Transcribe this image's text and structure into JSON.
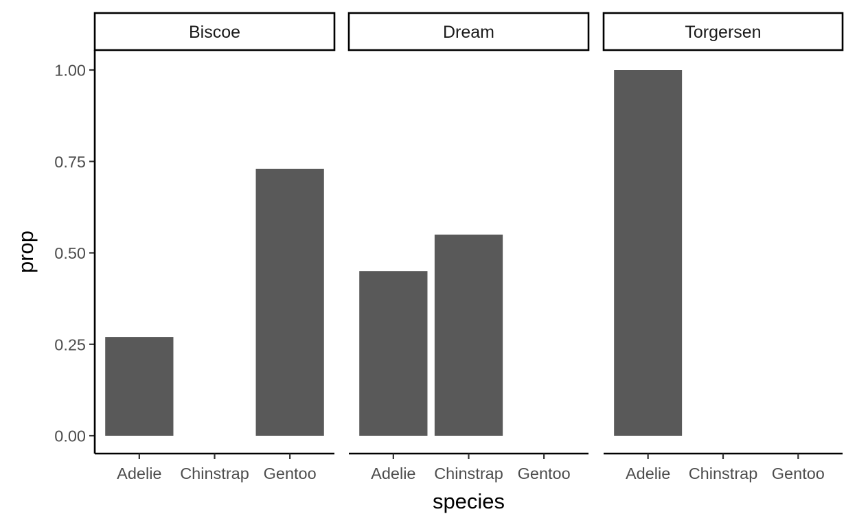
{
  "chart_data": {
    "type": "bar",
    "facet_by": "island",
    "xlabel": "species",
    "ylabel": "prop",
    "categories": [
      "Adelie",
      "Chinstrap",
      "Gentoo"
    ],
    "ylim": [
      0,
      1.05
    ],
    "yticks": [
      0,
      0.25,
      0.5,
      0.75,
      1.0
    ],
    "ytick_labels": [
      "0.00",
      "0.25",
      "0.50",
      "0.75",
      "1.00"
    ],
    "bar_color": "#595959",
    "grid": false,
    "panels": [
      {
        "label": "Biscoe",
        "values": [
          0.27,
          null,
          0.73
        ]
      },
      {
        "label": "Dream",
        "values": [
          0.45,
          0.55,
          null
        ]
      },
      {
        "label": "Torgersen",
        "values": [
          1.0,
          null,
          null
        ]
      }
    ]
  }
}
